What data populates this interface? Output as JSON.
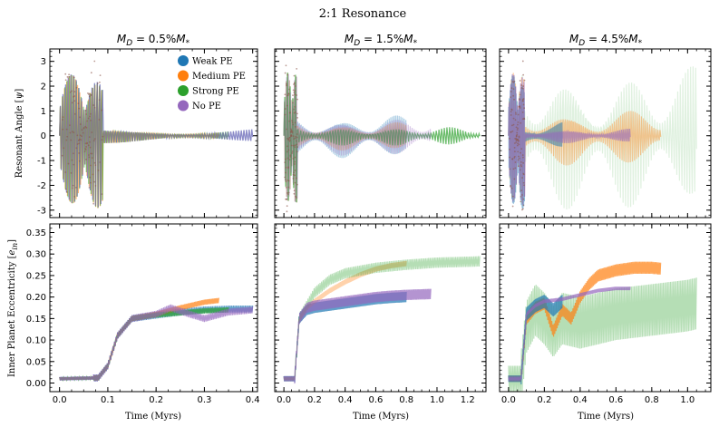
{
  "chart_data": {
    "type": "line",
    "suptitle": "2:1 Resonance",
    "colors": {
      "weak": "#1f77b4",
      "medium": "#ff7f0e",
      "strong": "#2ca02c",
      "none": "#9467bd",
      "overlap": "#8c564b"
    },
    "legend": {
      "placement": "top-right of first panel",
      "entries": [
        {
          "key": "weak",
          "label": "Weak PE"
        },
        {
          "key": "medium",
          "label": "Medium PE"
        },
        {
          "key": "strong",
          "label": "Strong PE"
        },
        {
          "key": "none",
          "label": "No PE"
        }
      ]
    },
    "top_ylabel": "Resonant Angle [ψ]",
    "bottom_ylabel": "Inner Planet Eccentricity [e_in]",
    "xlabel": "Time (Myrs)",
    "top_ylim": [
      -3.3,
      3.5
    ],
    "top_yticks": [
      -3,
      -2,
      -1,
      0,
      1,
      2,
      3
    ],
    "bottom_ylim": [
      -0.02,
      0.37
    ],
    "bottom_yticks": [
      0.0,
      0.05,
      0.1,
      0.15,
      0.2,
      0.25,
      0.3,
      0.35
    ],
    "bottom_ytick_labels": [
      "0.00",
      "0.05",
      "0.10",
      "0.15",
      "0.20",
      "0.25",
      "0.30",
      "0.35"
    ],
    "columns": [
      {
        "title_prefix": "M_D = 0.5% M_*",
        "xlim": [
          -0.02,
          0.41
        ],
        "xticks": [
          0.0,
          0.1,
          0.2,
          0.3,
          0.4
        ],
        "xtick_labels": [
          "0.0",
          "0.1",
          "0.2",
          "0.3",
          "0.4"
        ],
        "angle_series": [
          {
            "key": "weak",
            "t_end": 0.4,
            "amp_late": 0.3,
            "alpha": 0.55
          },
          {
            "key": "medium",
            "t_end": 0.33,
            "amp_late": 0.3,
            "alpha": 0.55
          },
          {
            "key": "strong",
            "t_end": 0.35,
            "amp_late": 0.3,
            "alpha": 0.55
          },
          {
            "key": "none",
            "t_end": 0.4,
            "amp_late": 0.3,
            "alpha": 0.55
          }
        ],
        "ecc_series": [
          {
            "key": "weak",
            "x": [
              0.0,
              0.08,
              0.1,
              0.12,
              0.15,
              0.2,
              0.25,
              0.3,
              0.35,
              0.4
            ],
            "y": [
              0.01,
              0.012,
              0.04,
              0.11,
              0.15,
              0.158,
              0.165,
              0.17,
              0.172,
              0.172
            ],
            "band": 0.008
          },
          {
            "key": "medium",
            "x": [
              0.0,
              0.08,
              0.1,
              0.12,
              0.15,
              0.2,
              0.25,
              0.3,
              0.33
            ],
            "y": [
              0.01,
              0.012,
              0.04,
              0.11,
              0.15,
              0.16,
              0.175,
              0.188,
              0.192
            ],
            "band": 0.006
          },
          {
            "key": "strong",
            "x": [
              0.0,
              0.08,
              0.1,
              0.12,
              0.15,
              0.2,
              0.25,
              0.3,
              0.35
            ],
            "y": [
              0.01,
              0.012,
              0.04,
              0.11,
              0.15,
              0.158,
              0.163,
              0.168,
              0.17
            ],
            "band": 0.006
          },
          {
            "key": "none",
            "x": [
              0.0,
              0.08,
              0.1,
              0.12,
              0.15,
              0.2,
              0.23,
              0.27,
              0.3,
              0.35,
              0.4
            ],
            "y": [
              0.01,
              0.012,
              0.04,
              0.11,
              0.15,
              0.16,
              0.175,
              0.16,
              0.15,
              0.165,
              0.17
            ],
            "band": 0.008
          }
        ]
      },
      {
        "title_prefix": "M_D = 1.5% M_*",
        "xlim": [
          -0.06,
          1.32
        ],
        "xticks": [
          0.0,
          0.2,
          0.4,
          0.6,
          0.8,
          1.0,
          1.2
        ],
        "xtick_labels": [
          "0.0",
          "0.2",
          "0.4",
          "0.6",
          "0.8",
          "1.0",
          "1.2"
        ],
        "angle_series": [
          {
            "key": "weak",
            "t_end": 0.8,
            "amp_late": 0.9,
            "alpha": 0.35
          },
          {
            "key": "medium",
            "t_end": 0.8,
            "amp_late": 0.6,
            "alpha": 0.35
          },
          {
            "key": "strong",
            "t_end": 1.28,
            "amp_late": 0.4,
            "alpha": 0.7
          },
          {
            "key": "none",
            "t_end": 0.96,
            "amp_late": 0.8,
            "alpha": 0.35
          }
        ],
        "ecc_series": [
          {
            "key": "weak",
            "x": [
              0.0,
              0.07,
              0.1,
              0.15,
              0.2,
              0.3,
              0.4,
              0.5,
              0.6,
              0.7,
              0.8
            ],
            "y": [
              0.01,
              0.01,
              0.15,
              0.17,
              0.175,
              0.18,
              0.185,
              0.19,
              0.195,
              0.198,
              0.2
            ],
            "band": 0.012
          },
          {
            "key": "medium",
            "x": [
              0.0,
              0.07,
              0.1,
              0.15,
              0.2,
              0.3,
              0.4,
              0.5,
              0.6,
              0.7,
              0.8
            ],
            "y": [
              0.01,
              0.01,
              0.15,
              0.175,
              0.19,
              0.215,
              0.235,
              0.252,
              0.265,
              0.273,
              0.278
            ],
            "band": 0.006
          },
          {
            "key": "strong",
            "x": [
              0.0,
              0.07,
              0.1,
              0.15,
              0.2,
              0.3,
              0.4,
              0.6,
              0.8,
              1.0,
              1.2,
              1.28
            ],
            "y": [
              0.01,
              0.01,
              0.15,
              0.18,
              0.21,
              0.24,
              0.255,
              0.268,
              0.275,
              0.28,
              0.282,
              0.283
            ],
            "band": 0.012
          },
          {
            "key": "none",
            "x": [
              0.0,
              0.07,
              0.1,
              0.15,
              0.2,
              0.3,
              0.4,
              0.5,
              0.6,
              0.7,
              0.8,
              0.96
            ],
            "y": [
              0.01,
              0.01,
              0.15,
              0.175,
              0.18,
              0.185,
              0.19,
              0.195,
              0.2,
              0.203,
              0.205,
              0.207
            ],
            "band": 0.012
          }
        ]
      },
      {
        "title_prefix": "M_D = 4.5% M_*",
        "xlim": [
          -0.05,
          1.13
        ],
        "xticks": [
          0.0,
          0.2,
          0.4,
          0.6,
          0.8,
          1.0
        ],
        "xtick_labels": [
          "0.0",
          "0.2",
          "0.4",
          "0.6",
          "0.8",
          "1.0"
        ],
        "angle_series": [
          {
            "key": "strong",
            "t_end": 1.05,
            "amp_late": 3.0,
            "alpha": 0.15
          },
          {
            "key": "medium",
            "t_end": 0.85,
            "amp_late": 1.2,
            "alpha": 0.4
          },
          {
            "key": "weak",
            "t_end": 0.3,
            "amp_late": 0.6,
            "alpha": 0.5
          },
          {
            "key": "none",
            "t_end": 0.68,
            "amp_late": 0.3,
            "alpha": 0.6
          }
        ],
        "ecc_series": [
          {
            "key": "strong",
            "x": [
              0.0,
              0.07,
              0.1,
              0.15,
              0.2,
              0.25,
              0.3,
              0.4,
              0.5,
              0.6,
              0.7,
              0.8,
              0.9,
              1.0,
              1.05
            ],
            "y": [
              0.01,
              0.01,
              0.13,
              0.17,
              0.15,
              0.12,
              0.15,
              0.14,
              0.15,
              0.16,
              0.165,
              0.17,
              0.175,
              0.18,
              0.185
            ],
            "band": 0.06
          },
          {
            "key": "medium",
            "x": [
              0.0,
              0.07,
              0.1,
              0.15,
              0.2,
              0.25,
              0.3,
              0.35,
              0.4,
              0.45,
              0.5,
              0.6,
              0.7,
              0.8,
              0.85
            ],
            "y": [
              0.01,
              0.01,
              0.15,
              0.175,
              0.185,
              0.12,
              0.17,
              0.15,
              0.2,
              0.23,
              0.25,
              0.262,
              0.268,
              0.268,
              0.266
            ],
            "band": 0.014
          },
          {
            "key": "weak",
            "x": [
              0.0,
              0.07,
              0.1,
              0.15,
              0.2,
              0.25,
              0.3
            ],
            "y": [
              0.01,
              0.01,
              0.16,
              0.18,
              0.19,
              0.17,
              0.19
            ],
            "band": 0.015
          },
          {
            "key": "none",
            "x": [
              0.0,
              0.07,
              0.1,
              0.15,
              0.2,
              0.3,
              0.4,
              0.5,
              0.6,
              0.68
            ],
            "y": [
              0.01,
              0.01,
              0.16,
              0.18,
              0.19,
              0.195,
              0.205,
              0.215,
              0.22,
              0.22
            ],
            "band": 0.004
          }
        ]
      }
    ]
  }
}
